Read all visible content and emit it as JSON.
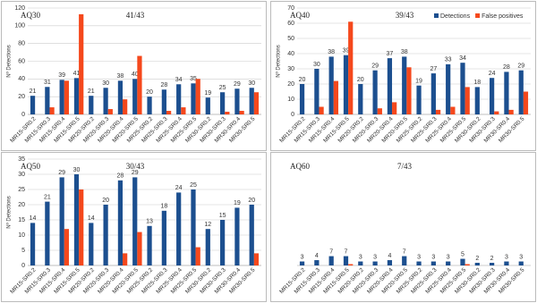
{
  "chart_data": [
    {
      "type": "bar",
      "title": "AQ30",
      "subtitle": "41/43",
      "y_label": "Nº Detections",
      "categories": [
        "MR15-SR0.2",
        "MR15-SR0.3",
        "MR15-SR0.4",
        "MR15-SR0.5",
        "MR20-SR0.2",
        "MR20-SR0.3",
        "MR20-SR0.4",
        "MR20-SR0.5",
        "MR25-SR0.2",
        "MR25-SR0.3",
        "MR25-SR0.4",
        "MR25-SR0.5",
        "MR30-SR0.2",
        "MR30-SR0.3",
        "MR30-SR0.4",
        "MR30-SR0.5"
      ],
      "series": [
        {
          "name": "Detections",
          "color": "#1c4f8f",
          "values": [
            21,
            31,
            39,
            41,
            21,
            30,
            38,
            40,
            20,
            28,
            34,
            35,
            19,
            25,
            29,
            30
          ]
        },
        {
          "name": "False positives",
          "color": "#f5481c",
          "values": [
            0,
            8,
            38,
            113,
            0,
            6,
            17,
            66,
            0,
            4,
            8,
            40,
            0,
            3,
            4,
            25
          ]
        }
      ],
      "ylim": [
        0,
        120
      ],
      "yticks": [
        0,
        20,
        40,
        60,
        80,
        100,
        120
      ],
      "grid": true
    },
    {
      "type": "bar",
      "title": "AQ40",
      "subtitle": "39/43",
      "y_label": "Nº Detections",
      "categories": [
        "MR15-SR0.2",
        "MR15-SR0.3",
        "MR15-SR0.4",
        "MR15-SR0.5",
        "MR20-SR0.2",
        "MR20-SR0.3",
        "MR20-SR0.4",
        "MR20-SR0.5",
        "MR25-SR0.2",
        "MR25-SR0.3",
        "MR25-SR0.4",
        "MR25-SR0.5",
        "MR30-SR0.2",
        "MR30-SR0.3",
        "MR30-SR0.4",
        "MR30-SR0.5"
      ],
      "series": [
        {
          "name": "Detections",
          "color": "#1c4f8f",
          "values": [
            20,
            30,
            38,
            39,
            20,
            29,
            37,
            38,
            19,
            27,
            33,
            34,
            18,
            24,
            28,
            29
          ]
        },
        {
          "name": "False positives",
          "color": "#f5481c",
          "values": [
            0,
            5,
            22,
            61,
            0,
            4,
            8,
            31,
            0,
            3,
            5,
            18,
            0,
            2,
            3,
            15
          ]
        }
      ],
      "ylim": [
        0,
        70
      ],
      "yticks": [
        0,
        10,
        20,
        30,
        40,
        50,
        60,
        70
      ],
      "grid": true,
      "legend": "top-right"
    },
    {
      "type": "bar",
      "title": "AQ50",
      "subtitle": "30/43",
      "y_label": "Nº Detections",
      "categories": [
        "MR15-SR0.2",
        "MR15-SR0.3",
        "MR15-SR0.4",
        "MR15-SR0.5",
        "MR20-SR0.2",
        "MR20-SR0.3",
        "MR20-SR0.4",
        "MR20-SR0.5",
        "MR25-SR0.2",
        "MR25-SR0.3",
        "MR25-SR0.4",
        "MR25-SR0.5",
        "MR30-SR0.2",
        "MR30-SR0.3",
        "MR30-SR0.4",
        "MR30-SR0.5"
      ],
      "series": [
        {
          "name": "Detections",
          "color": "#1c4f8f",
          "values": [
            14,
            21,
            29,
            30,
            14,
            20,
            28,
            29,
            13,
            18,
            24,
            25,
            12,
            15,
            19,
            20
          ]
        },
        {
          "name": "False positives",
          "color": "#f5481c",
          "values": [
            0,
            0,
            12,
            25,
            0,
            0,
            4,
            11,
            0,
            0,
            0,
            6,
            0,
            0,
            0,
            4
          ]
        }
      ],
      "ylim": [
        0,
        35
      ],
      "yticks": [
        0,
        5,
        10,
        15,
        20,
        25,
        30,
        35
      ],
      "grid": true
    },
    {
      "type": "bar",
      "title": "AQ60",
      "subtitle": "7/43",
      "categories": [
        "MR15-SR0.2",
        "MR15-SR0.3",
        "MR15-SR0.4",
        "MR15-SR0.5",
        "MR20-SR0.2",
        "MR20-SR0.3",
        "MR20-SR0.4",
        "MR20-SR0.5",
        "MR25-SR0.2",
        "MR25-SR0.3",
        "MR25-SR0.4",
        "MR25-SR0.5",
        "MR30-SR0.2",
        "MR30-SR0.3",
        "MR30-SR0.4",
        "MR30-SR0.5"
      ],
      "series": [
        {
          "name": "Detections",
          "color": "#1c4f8f",
          "values": [
            3,
            4,
            7,
            7,
            3,
            3,
            4,
            7,
            3,
            3,
            3,
            5,
            2,
            2,
            3,
            3
          ]
        },
        {
          "name": "False positives",
          "color": "#f5481c",
          "values": [
            0,
            0,
            0,
            1,
            0,
            0,
            0,
            0,
            0,
            0,
            0,
            1,
            0,
            0,
            0,
            0
          ]
        }
      ],
      "ylim": [
        0,
        80
      ]
    }
  ]
}
